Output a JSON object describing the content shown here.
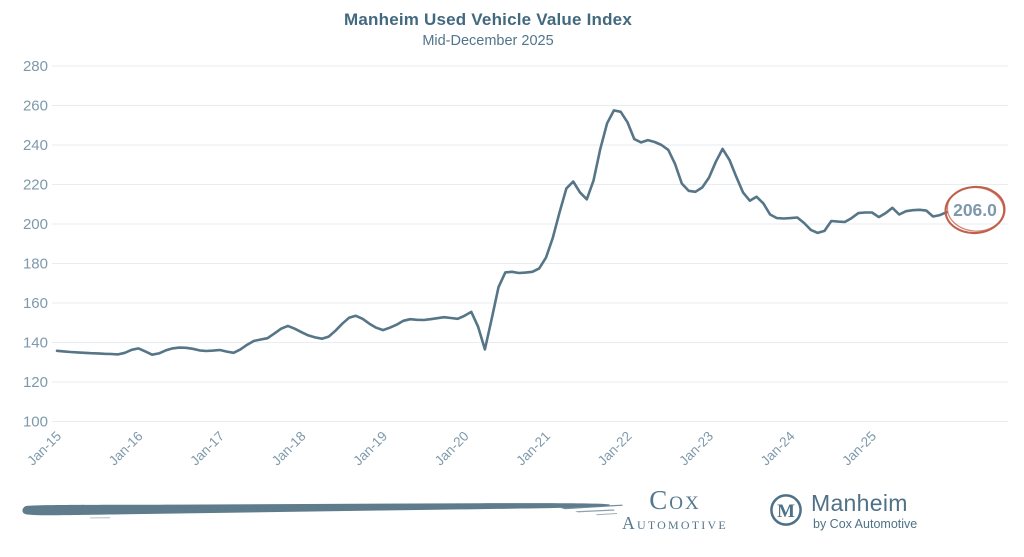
{
  "header": {
    "title": "Manheim Used Vehicle Value Index",
    "subtitle": "Mid-December 2025"
  },
  "callout": {
    "value": "206.0"
  },
  "colors": {
    "line": "#567587",
    "gridline": "#e7edf0",
    "axis_text": "#7e99aa",
    "title_text": "#43697f",
    "subtitle_text": "#50758c",
    "callout_circle": "#c0604a",
    "callout_text": "#7f99ab",
    "brand": "#54788e",
    "brush": "#5e7c8b"
  },
  "chart_data": {
    "type": "line",
    "title": "Manheim Used Vehicle Value Index",
    "subtitle": "Mid-December 2025",
    "grid": "horizontal",
    "legend_position": "none",
    "x_axis": {
      "tick_labels": [
        "Jan-15",
        "Jan-16",
        "Jan-17",
        "Jan-18",
        "Jan-19",
        "Jan-20",
        "Jan-21",
        "Jan-22",
        "Jan-23",
        "Jan-24",
        "Jan-25"
      ],
      "months_per_tick": 12
    },
    "y_axis": {
      "ticks": [
        100,
        120,
        140,
        160,
        180,
        200,
        220,
        240,
        260,
        280
      ],
      "range": [
        100,
        285
      ]
    },
    "annotation": {
      "label": "206.0",
      "applies_to": "last point (mid-December 2025)"
    },
    "series": [
      {
        "name": "Manheim Used Vehicle Value Index",
        "frequency": "monthly",
        "start_month": "2015-01",
        "end_month": "2025-12",
        "values": [
          135.8,
          135.5,
          135.2,
          135.0,
          134.8,
          134.6,
          134.5,
          134.3,
          134.2,
          134.0,
          134.8,
          136.3,
          137.0,
          135.5,
          133.8,
          134.5,
          136.0,
          137.0,
          137.4,
          137.3,
          136.8,
          136.0,
          135.7,
          135.9,
          136.2,
          135.4,
          134.8,
          136.5,
          138.9,
          140.8,
          141.5,
          142.2,
          144.5,
          147.0,
          148.4,
          147.0,
          145.2,
          143.6,
          142.6,
          141.9,
          143.0,
          146.0,
          149.5,
          152.5,
          153.5,
          152.0,
          149.5,
          147.5,
          146.3,
          147.5,
          149.0,
          151.0,
          151.8,
          151.5,
          151.4,
          151.8,
          152.3,
          152.8,
          152.4,
          152.0,
          153.5,
          155.5,
          148.0,
          136.5,
          152.0,
          168.0,
          175.5,
          175.8,
          175.2,
          175.4,
          175.8,
          177.5,
          183.0,
          193.0,
          206.0,
          218.0,
          221.5,
          216.0,
          212.5,
          222.0,
          238.0,
          251.0,
          257.5,
          256.8,
          251.5,
          243.0,
          241.3,
          242.5,
          241.5,
          240.0,
          237.5,
          230.5,
          220.5,
          216.8,
          216.3,
          218.5,
          223.5,
          231.5,
          238.0,
          232.5,
          224.0,
          216.0,
          211.8,
          213.8,
          210.5,
          204.8,
          203.0,
          202.8,
          203.0,
          203.3,
          200.5,
          197.0,
          195.5,
          196.5,
          201.5,
          201.2,
          201.0,
          203.0,
          205.5,
          205.8,
          205.8,
          203.5,
          205.5,
          208.2,
          204.8,
          206.5,
          207.0,
          207.2,
          206.8,
          203.8,
          204.5,
          206.0
        ]
      }
    ]
  },
  "footer": {
    "cox": {
      "line1": "Cox",
      "line2": "Automotive"
    },
    "manheim": {
      "monogram": "M",
      "name": "Manheim",
      "byline": "by Cox Automotive"
    }
  }
}
